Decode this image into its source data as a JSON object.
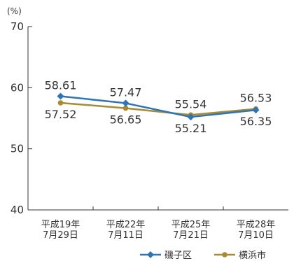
{
  "chart_data": {
    "type": "line",
    "ylabel": "(%)",
    "ylim": [
      40,
      70
    ],
    "yticks": [
      40,
      50,
      60,
      70
    ],
    "categories": [
      [
        "平成19年",
        "7月29日"
      ],
      [
        "平成22年",
        "7月11日"
      ],
      [
        "平成25年",
        "7月21日"
      ],
      [
        "平成28年",
        "7月10日"
      ]
    ],
    "series": [
      {
        "name": "磯子区",
        "values": [
          58.61,
          57.47,
          55.21,
          56.35
        ],
        "labels": [
          "58.61",
          "57.47",
          "55.21",
          "56.35"
        ],
        "color": "#2e75b6",
        "marker": "diamond"
      },
      {
        "name": "横浜市",
        "values": [
          57.52,
          56.65,
          55.54,
          56.53
        ],
        "labels": [
          "57.52",
          "56.65",
          "55.54",
          "56.53"
        ],
        "color": "#a88a30",
        "marker": "circle"
      }
    ],
    "grid": false,
    "legend": "bottom-right"
  }
}
